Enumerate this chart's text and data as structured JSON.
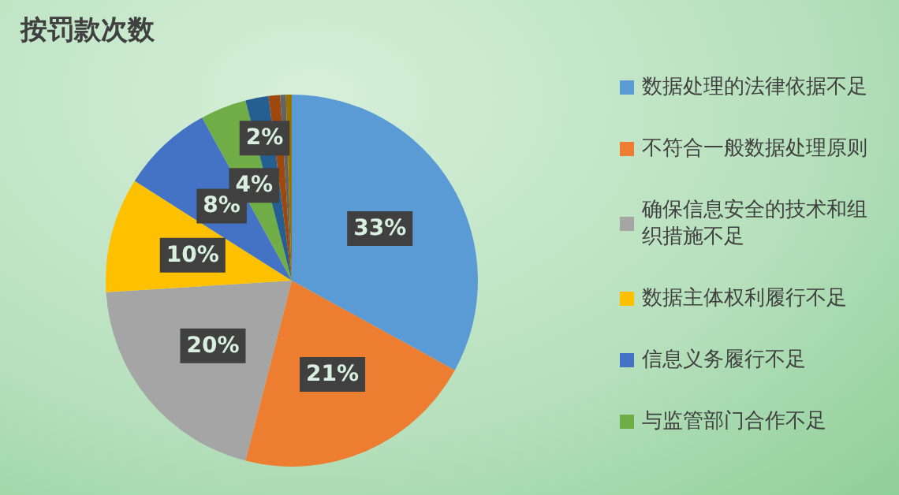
{
  "chart_data": {
    "type": "pie",
    "title": "按罚款次数",
    "categories": [
      "数据处理的法律依据不足",
      "不符合一般数据处理原则",
      "确保信息安全的技术和组织措施不足",
      "数据主体权利履行不足",
      "信息义务履行不足",
      "与监管部门合作不足",
      null,
      null,
      null,
      null
    ],
    "values": [
      33,
      21,
      20,
      10,
      8,
      4,
      2,
      1,
      0.5,
      0.5
    ],
    "value_labels": [
      "33%",
      "21%",
      "20%",
      "10%",
      "8%",
      "4%",
      "2%",
      null,
      null,
      null
    ],
    "colors": [
      "#5b9bd5",
      "#ed7d31",
      "#a5a5a5",
      "#ffc000",
      "#4472c4",
      "#70ad47",
      "#255e91",
      "#9e480e",
      "#636363",
      "#997300"
    ],
    "legend": "right"
  }
}
